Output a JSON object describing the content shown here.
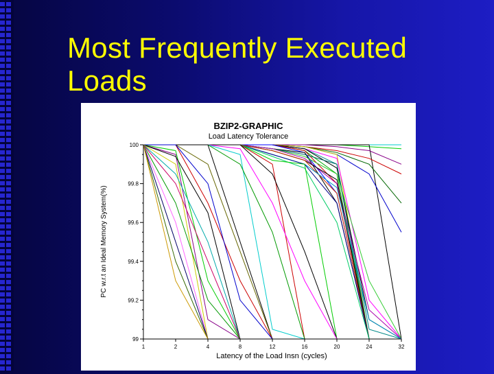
{
  "slide": {
    "title_line1": "Most Frequently Executed",
    "title_line2": "Loads",
    "title_color": "#ffff00"
  },
  "chart_data": {
    "type": "line",
    "title": "BZIP2-GRAPHIC",
    "subtitle": "Load Latency Tolerance",
    "xlabel": "Latency of the Load Insn (cycles)",
    "ylabel": "PC w.r.t an Ideal Memory System(%)",
    "x": [
      1,
      2,
      4,
      8,
      12,
      16,
      20,
      24,
      32
    ],
    "x_tick_labels": [
      "1",
      "2",
      "4",
      "8",
      "12",
      "16",
      "20",
      "24",
      "32"
    ],
    "y_ticks": [
      99,
      99.2,
      99.4,
      99.6,
      99.8,
      100
    ],
    "y_tick_labels": [
      "99",
      "99.2",
      "99.4",
      "99.6",
      "99.8",
      "100"
    ],
    "ylim": [
      99,
      100
    ],
    "grid": false,
    "legend": "none",
    "series": [
      {
        "color": "#00cccc",
        "values": [
          100,
          100,
          100,
          100,
          100,
          100,
          100,
          100,
          100
        ]
      },
      {
        "color": "#00cc00",
        "values": [
          100,
          100,
          100,
          100,
          100,
          100,
          100,
          99.99,
          99.98
        ]
      },
      {
        "color": "#000000",
        "values": [
          100,
          100,
          100,
          100,
          100,
          100,
          100,
          100,
          99.0
        ]
      },
      {
        "color": "#880088",
        "values": [
          100,
          100,
          100,
          100,
          100,
          100,
          99.99,
          99.97,
          99.9
        ]
      },
      {
        "color": "#cc0000",
        "values": [
          100,
          100,
          100,
          100,
          100,
          99.99,
          99.97,
          99.93,
          99.85
        ]
      },
      {
        "color": "#006600",
        "values": [
          100,
          100,
          100,
          100,
          100,
          99.99,
          99.96,
          99.9,
          99.7
        ]
      },
      {
        "color": "#0000cc",
        "values": [
          100,
          100,
          100,
          100,
          100,
          99.99,
          99.95,
          99.85,
          99.55
        ]
      },
      {
        "color": "#cccc00",
        "values": [
          100,
          100,
          100,
          100,
          100,
          99.99,
          99.95,
          99.0,
          99.0
        ]
      },
      {
        "color": "#ff00ff",
        "values": [
          100,
          100,
          100,
          100,
          100,
          99.98,
          99.93,
          99.2,
          99.0
        ]
      },
      {
        "color": "#008888",
        "values": [
          100,
          100,
          100,
          100,
          100,
          99.98,
          99.9,
          99.05,
          99.0
        ]
      },
      {
        "color": "#000000",
        "values": [
          100,
          100,
          100,
          100,
          100,
          99.98,
          99.88,
          99.1,
          99.0
        ]
      },
      {
        "color": "#00aa00",
        "values": [
          100,
          100,
          100,
          100,
          100,
          99.97,
          99.85,
          99.0,
          99.0
        ]
      },
      {
        "color": "#cc0000",
        "values": [
          100,
          100,
          100,
          100,
          100,
          99.97,
          99.8,
          99.0,
          99.0
        ]
      },
      {
        "color": "#0000ff",
        "values": [
          100,
          100,
          100,
          100,
          100,
          99.96,
          99.75,
          99.0,
          99.0
        ]
      },
      {
        "color": "#000000",
        "values": [
          100,
          100,
          100,
          100,
          99.98,
          99.96,
          99.7,
          99.0,
          99.0
        ]
      },
      {
        "color": "#006666",
        "values": [
          100,
          100,
          100,
          100,
          99.98,
          99.95,
          99.9,
          99.0,
          99.0
        ]
      },
      {
        "color": "#33cc33",
        "values": [
          100,
          100,
          100,
          100,
          99.98,
          99.94,
          99.85,
          99.3,
          99.0
        ]
      },
      {
        "color": "#aa00aa",
        "values": [
          100,
          100,
          100,
          100,
          99.98,
          99.93,
          99.8,
          99.15,
          99.0
        ]
      },
      {
        "color": "#000000",
        "values": [
          100,
          100,
          100,
          100,
          99.97,
          99.92,
          99.82,
          99.0,
          99.0
        ]
      },
      {
        "color": "#cc3300",
        "values": [
          100,
          100,
          100,
          100,
          99.97,
          99.92,
          99.75,
          99.0,
          99.0
        ]
      },
      {
        "color": "#0099cc",
        "values": [
          100,
          100,
          100,
          100,
          99.95,
          99.9,
          99.78,
          99.1,
          99.0
        ]
      },
      {
        "color": "#000088",
        "values": [
          100,
          100,
          100,
          100,
          99.95,
          99.9,
          99.7,
          99.0,
          99.0
        ]
      },
      {
        "color": "#00cc66",
        "values": [
          100,
          100,
          100,
          100,
          99.94,
          99.88,
          99.6,
          99.0,
          99.0
        ]
      },
      {
        "color": "#00cc00",
        "values": [
          100,
          100,
          100,
          100,
          99.92,
          99.9,
          99.0,
          99.0,
          99.0
        ]
      },
      {
        "color": "#cc0000",
        "values": [
          100,
          100,
          100,
          100,
          99.9,
          99.0,
          99.0,
          99.0,
          99.0
        ]
      },
      {
        "color": "#000000",
        "values": [
          100,
          100,
          100,
          100,
          99.85,
          99.45,
          99.0,
          99.0,
          99.0
        ]
      },
      {
        "color": "#ff00ff",
        "values": [
          100,
          100,
          100,
          99.98,
          99.7,
          99.3,
          99.0,
          99.0,
          99.0
        ]
      },
      {
        "color": "#00cccc",
        "values": [
          100,
          100,
          100,
          99.95,
          99.05,
          99.0,
          99.0,
          99.0,
          99.0
        ]
      },
      {
        "color": "#009900",
        "values": [
          100,
          100,
          100,
          99.9,
          99.55,
          99.0,
          99.0,
          99.0,
          99.0
        ]
      },
      {
        "color": "#000000",
        "values": [
          100,
          100,
          100,
          99.5,
          99.0,
          99.0,
          99.0,
          99.0,
          99.0
        ]
      },
      {
        "color": "#666600",
        "values": [
          100,
          100,
          99.9,
          99.45,
          99.0,
          99.0,
          99.0,
          99.0,
          99.0
        ]
      },
      {
        "color": "#cc0000",
        "values": [
          100,
          100,
          99.7,
          99.3,
          99.0,
          99.0,
          99.0,
          99.0,
          99.0
        ]
      },
      {
        "color": "#0000cc",
        "values": [
          100,
          100,
          99.8,
          99.2,
          99.0,
          99.0,
          99.0,
          99.0,
          99.0
        ]
      },
      {
        "color": "#00cc00",
        "values": [
          100,
          99.97,
          99.3,
          99.0,
          99.0,
          99.0,
          99.0,
          99.0,
          99.0
        ]
      },
      {
        "color": "#880088",
        "values": [
          100,
          99.95,
          99.1,
          99.0,
          99.0,
          99.0,
          99.0,
          99.0,
          99.0
        ]
      },
      {
        "color": "#000000",
        "values": [
          100,
          99.94,
          99.65,
          99.0,
          99.0,
          99.0,
          99.0,
          99.0,
          99.0
        ]
      },
      {
        "color": "#cccc00",
        "values": [
          100,
          99.9,
          99.0,
          99.0,
          99.0,
          99.0,
          99.0,
          99.0,
          99.0
        ]
      },
      {
        "color": "#00aaaa",
        "values": [
          100,
          99.85,
          99.5,
          99.0,
          99.0,
          99.0,
          99.0,
          99.0,
          99.0
        ]
      },
      {
        "color": "#cc0066",
        "values": [
          100,
          99.8,
          99.4,
          99.0,
          99.0,
          99.0,
          99.0,
          99.0,
          99.0
        ]
      },
      {
        "color": "#009900",
        "values": [
          100,
          99.7,
          99.2,
          99.0,
          99.0,
          99.0,
          99.0,
          99.0,
          99.0
        ]
      },
      {
        "color": "#ff66ff",
        "values": [
          100,
          99.6,
          99.0,
          99.0,
          99.0,
          99.0,
          99.0,
          99.0,
          99.0
        ]
      },
      {
        "color": "#000066",
        "values": [
          100,
          99.5,
          99.0,
          99.0,
          99.0,
          99.0,
          99.0,
          99.0,
          99.0
        ]
      },
      {
        "color": "#336600",
        "values": [
          100,
          99.4,
          99.0,
          99.0,
          99.0,
          99.0,
          99.0,
          99.0,
          99.0
        ]
      },
      {
        "color": "#cc9900",
        "values": [
          100,
          99.3,
          99.0,
          99.0,
          99.0,
          99.0,
          99.0,
          99.0,
          99.0
        ]
      }
    ]
  }
}
